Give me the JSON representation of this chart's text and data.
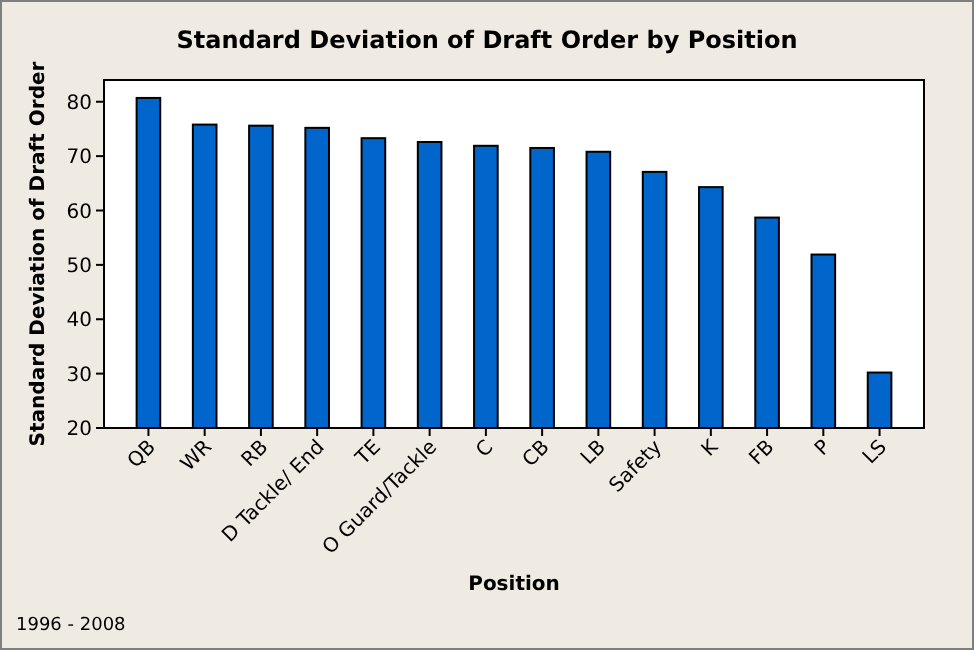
{
  "chart_data": {
    "type": "bar",
    "title": "Standard Deviation of Draft Order by Position",
    "xlabel": "Position",
    "ylabel": "Standard Deviation of Draft Order",
    "categories": [
      "QB",
      "WR",
      "RB",
      "D Tackle/ End",
      "TE",
      "O Guard/Tackle",
      "C",
      "CB",
      "LB",
      "Safety",
      "K",
      "FB",
      "P",
      "LS"
    ],
    "values": [
      80.7,
      75.8,
      75.6,
      75.2,
      73.3,
      72.6,
      71.9,
      71.5,
      70.8,
      67.1,
      64.3,
      58.7,
      51.9,
      30.2
    ],
    "color": "#0066cc",
    "ylim": [
      20,
      84
    ],
    "yticks": [
      20,
      30,
      40,
      50,
      60,
      70,
      80
    ],
    "grid": false,
    "annotations": [
      "1996 - 2008"
    ]
  }
}
